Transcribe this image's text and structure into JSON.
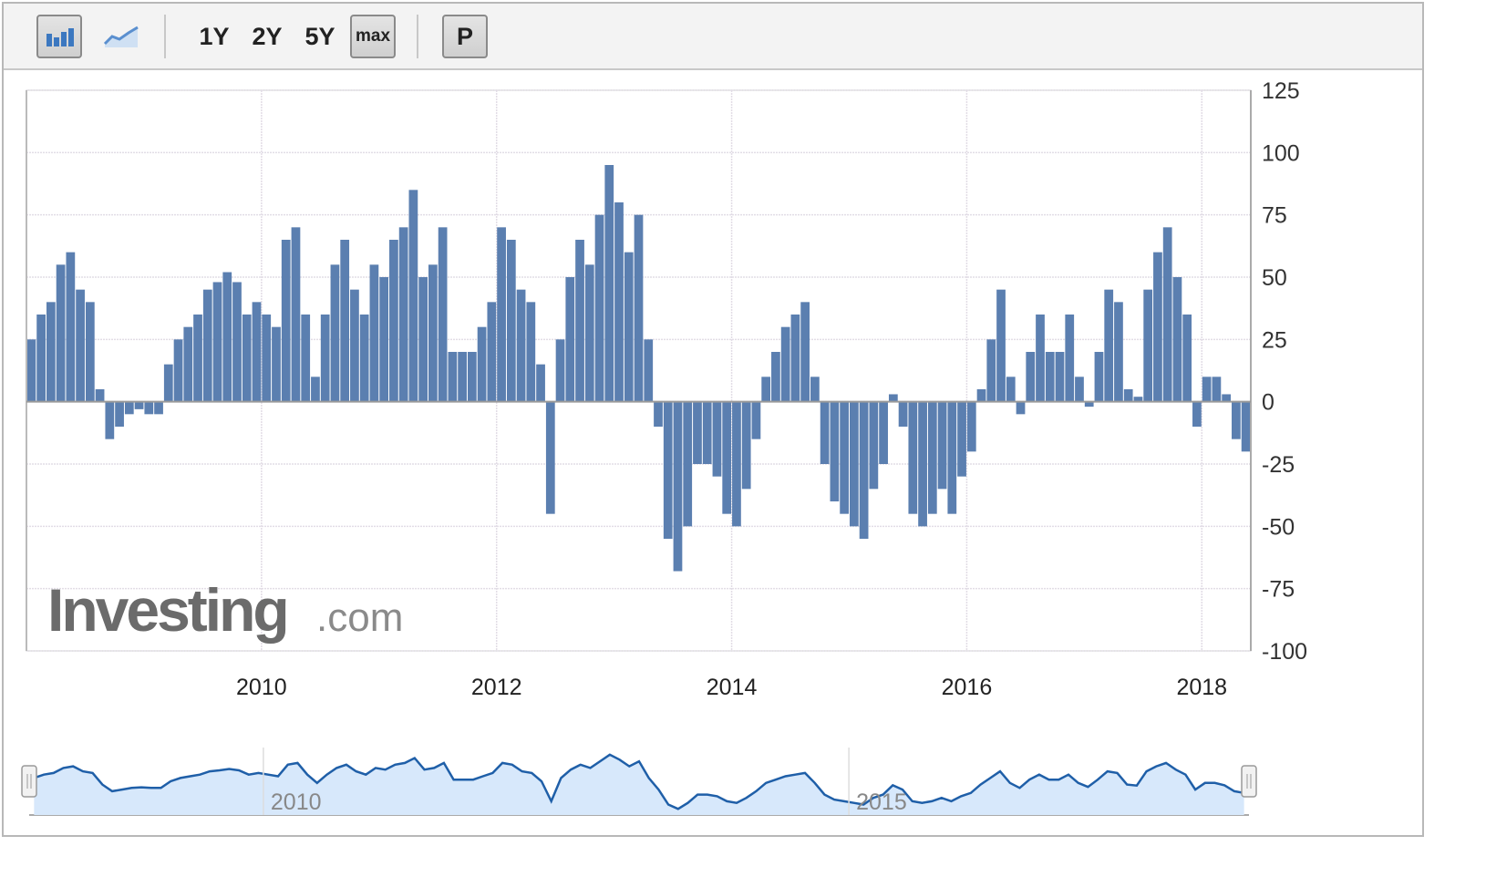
{
  "toolbar": {
    "chart_type_buttons": [
      {
        "icon": "bar-chart-icon",
        "active": true
      },
      {
        "icon": "area-chart-icon",
        "active": false
      }
    ],
    "ranges": [
      "1Y",
      "2Y",
      "5Y",
      "max"
    ],
    "active_range": "max",
    "p_label": "P"
  },
  "watermark": {
    "brand": "Investing",
    ".com": ".com",
    "text": "Investing.com"
  },
  "colors": {
    "bar": "#5b7fb0",
    "navigator_line": "#1f5fa8",
    "navigator_fill": "#d7e8fb",
    "grid": "#e2dde6"
  },
  "navigator": {
    "labels": [
      "2010",
      "2015"
    ]
  },
  "chart_data": {
    "type": "bar",
    "x_start": "2008-01",
    "x_interval": "month",
    "values": [
      25,
      35,
      40,
      55,
      60,
      45,
      40,
      5,
      -15,
      -10,
      -5,
      -3,
      -5,
      -5,
      15,
      25,
      30,
      35,
      45,
      48,
      52,
      48,
      35,
      40,
      35,
      30,
      65,
      70,
      35,
      10,
      35,
      55,
      65,
      45,
      35,
      55,
      50,
      65,
      70,
      85,
      50,
      55,
      70,
      20,
      20,
      20,
      30,
      40,
      70,
      65,
      45,
      40,
      15,
      -45,
      25,
      50,
      65,
      55,
      75,
      95,
      80,
      60,
      75,
      25,
      -10,
      -55,
      -68,
      -50,
      -25,
      -25,
      -30,
      -45,
      -50,
      -35,
      -15,
      10,
      20,
      30,
      35,
      40,
      10,
      -25,
      -40,
      -45,
      -50,
      -55,
      -35,
      -25,
      3,
      -10,
      -45,
      -50,
      -45,
      -35,
      -45,
      -30,
      -20,
      5,
      25,
      45,
      10,
      -5,
      20,
      35,
      20,
      20,
      35,
      10,
      -2,
      20,
      45,
      40,
      5,
      2,
      45,
      60,
      70,
      50,
      35,
      -10,
      10,
      10,
      3,
      -15,
      -20
    ],
    "x_ticks": [
      "2010",
      "2012",
      "2014",
      "2016",
      "2018"
    ],
    "y_ticks": [
      125,
      100,
      75,
      50,
      25,
      0,
      -25,
      -50,
      -75,
      -100
    ],
    "ylim": [
      -100,
      125
    ],
    "xlim": [
      "2008-01",
      "2018-05"
    ],
    "grid": true,
    "legend": "none"
  }
}
